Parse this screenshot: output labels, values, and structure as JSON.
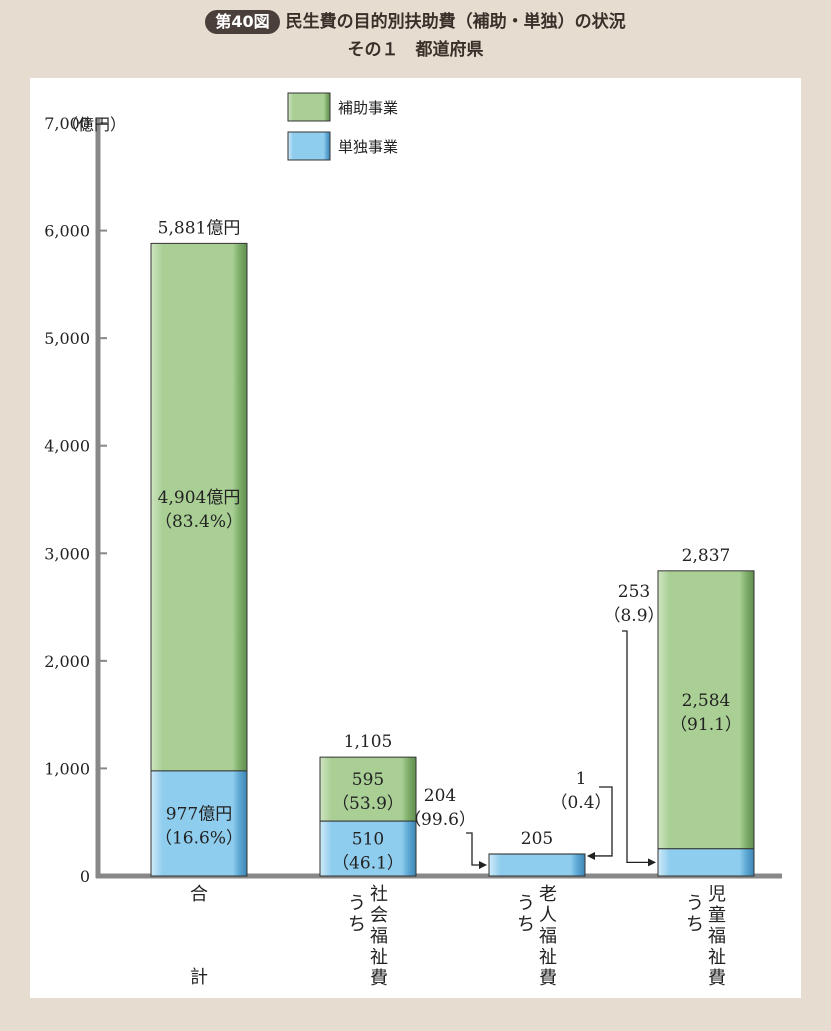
{
  "header": {
    "fig_label": "第40図",
    "title": "民生費の目的別扶助費（補助・単独）の状況",
    "subtitle": "その１　都道府県"
  },
  "chart_data": {
    "type": "bar",
    "stacked": true,
    "ylabel": "（億円）",
    "ylim": [
      0,
      7000
    ],
    "yticks": [
      "0",
      "1,000",
      "2,000",
      "3,000",
      "4,000",
      "5,000",
      "6,000",
      "7,000"
    ],
    "legend_position": "top-left",
    "categories": [
      {
        "label": "合計",
        "prefix": "",
        "name": "合計",
        "bottom": "計"
      },
      {
        "label": "うち社会福祉費",
        "prefix": "うち",
        "name": "社会福祉費",
        "bottom": ""
      },
      {
        "label": "うち老人福祉費",
        "prefix": "うち",
        "name": "老人福祉費",
        "bottom": ""
      },
      {
        "label": "うち児童福祉費",
        "prefix": "うち",
        "name": "児童福祉費",
        "bottom": ""
      }
    ],
    "series": [
      {
        "name": "単独事業",
        "color": "#8fcdee",
        "values": [
          977,
          510,
          204,
          253
        ]
      },
      {
        "name": "補助事業",
        "color": "#a7cd94",
        "values": [
          4904,
          595,
          1,
          2584
        ]
      }
    ],
    "totals": [
      "5,881億円",
      "1,105",
      "205",
      "2,837"
    ],
    "data_labels": {
      "green": [
        [
          "4,904億円",
          "（83.4%）"
        ],
        [
          "595",
          "（53.9）"
        ],
        [
          "1",
          "（0.4）"
        ],
        [
          "2,584",
          "（91.1）"
        ]
      ],
      "blue": [
        [
          "977億円",
          "（16.6%）"
        ],
        [
          "510",
          "（46.1）"
        ],
        [
          "204",
          "（99.6）"
        ],
        [
          "253",
          "（8.9）"
        ]
      ]
    }
  }
}
